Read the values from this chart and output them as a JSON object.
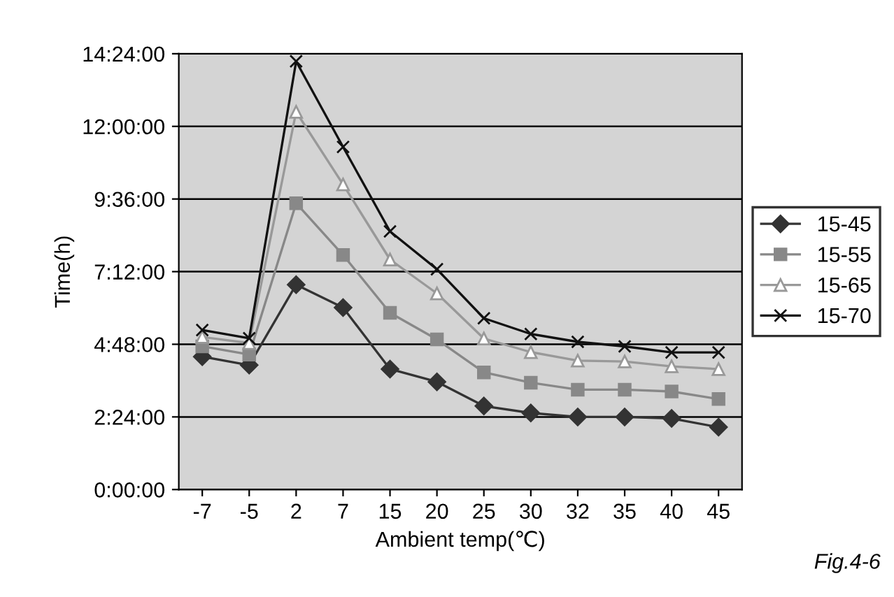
{
  "chart_data": {
    "type": "line",
    "xlabel": "Ambient temp(℃)",
    "ylabel": "Time(h)",
    "categories": [
      "-7",
      "-5",
      "2",
      "7",
      "15",
      "20",
      "25",
      "30",
      "32",
      "35",
      "40",
      "45"
    ],
    "series": [
      {
        "name": "15-45",
        "color": "#333333",
        "marker": "diamond",
        "values": [
          4.39,
          4.11,
          6.77,
          6.01,
          3.98,
          3.56,
          2.76,
          2.53,
          2.4,
          2.4,
          2.35,
          2.06
        ]
      },
      {
        "name": "15-55",
        "color": "#888888",
        "marker": "square",
        "values": [
          4.73,
          4.46,
          9.46,
          7.75,
          5.84,
          4.96,
          3.87,
          3.53,
          3.3,
          3.3,
          3.24,
          2.99
        ]
      },
      {
        "name": "15-65",
        "color": "#999999",
        "marker": "triangle",
        "values": [
          5.04,
          4.84,
          12.48,
          10.08,
          7.6,
          6.48,
          4.99,
          4.54,
          4.26,
          4.23,
          4.07,
          3.98
        ]
      },
      {
        "name": "15-70",
        "color": "#111111",
        "marker": "cross",
        "values": [
          5.27,
          5.0,
          14.15,
          11.32,
          8.53,
          7.28,
          5.66,
          5.14,
          4.88,
          4.73,
          4.53,
          4.53
        ]
      }
    ],
    "ylim": [
      0,
      14.4
    ],
    "yticks": [
      {
        "value": 0,
        "label": "0:00:00"
      },
      {
        "value": 2.4,
        "label": "2:24:00"
      },
      {
        "value": 4.8,
        "label": "4:48:00"
      },
      {
        "value": 7.2,
        "label": "7:12:00"
      },
      {
        "value": 9.6,
        "label": "9:36:00"
      },
      {
        "value": 12,
        "label": "12:00:00"
      },
      {
        "value": 14.4,
        "label": "14:24:00"
      }
    ],
    "grid": "y",
    "legend": "right",
    "annotations": [
      "Fig.4-6"
    ]
  }
}
